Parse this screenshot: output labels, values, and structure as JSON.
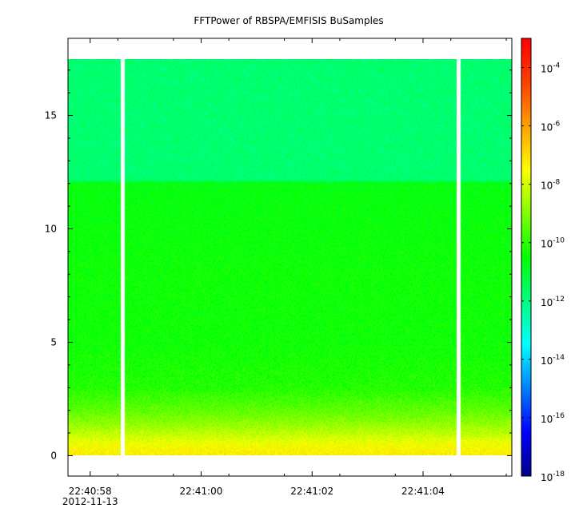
{
  "chart_data": {
    "type": "heatmap",
    "title": "FFTPower of RBSPA/EMFISIS  BuSamples",
    "xlabel": "",
    "ylabel": "",
    "x_tick_labels": [
      "22:40:58",
      "22:41:00",
      "22:41:02",
      "22:41:04"
    ],
    "x_date_label": "2012-11-13",
    "x_tick_seconds": [
      58,
      60,
      62,
      64
    ],
    "x_range_seconds": [
      57.6,
      65.6
    ],
    "y_ticks": [
      0,
      5,
      10,
      15
    ],
    "y_range": [
      -0.9,
      18.4
    ],
    "y_data_range": [
      0,
      17.5
    ],
    "data_gaps_seconds": [
      [
        58.55,
        58.6
      ],
      [
        64.6,
        64.65
      ]
    ],
    "colorbar": {
      "scale": "log",
      "range": [
        1e-18,
        0.001
      ],
      "tick_exponents": [
        -4,
        -6,
        -8,
        -10,
        -12,
        -14,
        -16,
        -18
      ],
      "tick_base": "10",
      "colormap": [
        "#00008c",
        "#0000ff",
        "#0080ff",
        "#00ffff",
        "#00ff80",
        "#00ff00",
        "#80ff00",
        "#ffff00",
        "#ffa000",
        "#ff4000",
        "#ff0000"
      ]
    },
    "power_profile": [
      {
        "freq": 0.0,
        "log_power": -7.2
      },
      {
        "freq": 0.5,
        "log_power": -7.6
      },
      {
        "freq": 1.0,
        "log_power": -8.3
      },
      {
        "freq": 1.5,
        "log_power": -8.9
      },
      {
        "freq": 2.0,
        "log_power": -9.4
      },
      {
        "freq": 3.0,
        "log_power": -10.1
      },
      {
        "freq": 5.0,
        "log_power": -10.4
      },
      {
        "freq": 8.0,
        "log_power": -10.4
      },
      {
        "freq": 12.0,
        "log_power": -10.6
      },
      {
        "freq": 12.2,
        "log_power": -11.8
      },
      {
        "freq": 17.5,
        "log_power": -11.8
      }
    ],
    "grid": false
  }
}
